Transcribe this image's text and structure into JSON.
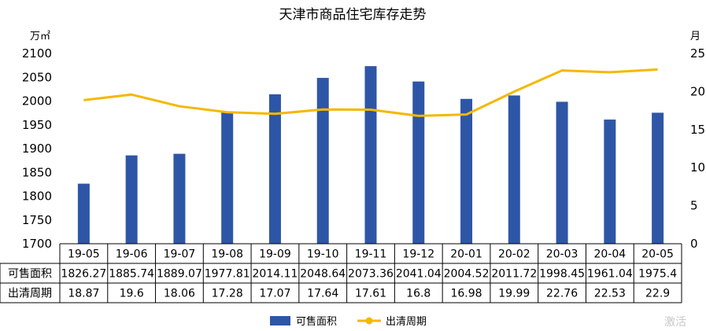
{
  "chart_data": {
    "type": "bar",
    "title": "天津市商品住宅库存走势",
    "y_left_unit": "万㎡",
    "y_right_unit": "月",
    "categories": [
      "19-05",
      "19-06",
      "19-07",
      "19-08",
      "19-09",
      "19-10",
      "19-11",
      "19-12",
      "20-01",
      "20-02",
      "20-03",
      "20-04",
      "20-05"
    ],
    "ylim_left": [
      1700,
      2100
    ],
    "yticks_left": [
      1700,
      1750,
      1800,
      1850,
      1900,
      1950,
      2000,
      2050,
      2100
    ],
    "ylim_right": [
      0,
      25
    ],
    "yticks_right": [
      0,
      5,
      10,
      15,
      20,
      25
    ],
    "series": [
      {
        "name": "可售面积",
        "type": "bar",
        "axis": "left",
        "color": "#2e56a7",
        "values": [
          1826.27,
          1885.74,
          1889.07,
          1977.81,
          2014.11,
          2048.64,
          2073.36,
          2041.04,
          2004.52,
          2011.72,
          1998.45,
          1961.04,
          1975.4
        ],
        "labels": [
          "1826.27",
          "1885.74",
          "1889.07",
          "1977.81",
          "2014.11",
          "2048.64",
          "2073.36",
          "2041.04",
          "2004.52",
          "2011.72",
          "1998.45",
          "1961.04",
          "1975.4"
        ]
      },
      {
        "name": "出清周期",
        "type": "line",
        "axis": "right",
        "color": "#f5b800",
        "values": [
          18.87,
          19.6,
          18.06,
          17.28,
          17.07,
          17.64,
          17.61,
          16.8,
          16.98,
          19.99,
          22.76,
          22.53,
          22.9
        ],
        "labels": [
          "18.87",
          "19.6",
          "18.06",
          "17.28",
          "17.07",
          "17.64",
          "17.61",
          "16.8",
          "16.98",
          "19.99",
          "22.76",
          "22.53",
          "22.9"
        ]
      }
    ],
    "legend_position": "bottom-center",
    "grid": false
  },
  "watermark": "激活"
}
